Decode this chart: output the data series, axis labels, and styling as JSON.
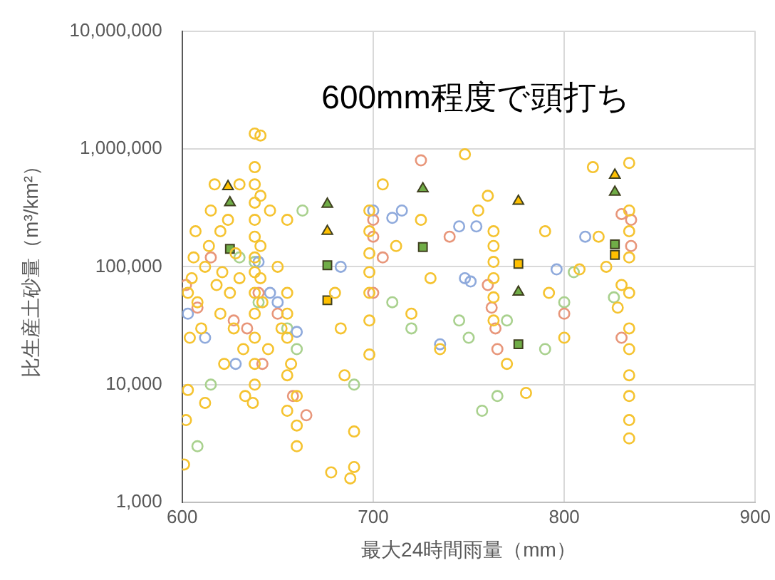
{
  "chart_data": {
    "type": "scatter",
    "xlabel": "最大24時間雨量（mm）",
    "ylabel": "比生産土砂量（m³/km²）",
    "annotations": [
      "600mm程度で頭打ち"
    ],
    "xlim": [
      600,
      900
    ],
    "xticks": [
      600,
      700,
      800,
      900
    ],
    "ylim": [
      1000,
      10000000
    ],
    "yticks": [
      {
        "value": 1000,
        "label": "1,000"
      },
      {
        "value": 10000,
        "label": "10,000"
      },
      {
        "value": 100000,
        "label": "100,000"
      },
      {
        "value": 1000000,
        "label": "1,000,000"
      },
      {
        "value": 10000000,
        "label": "10,000,000"
      }
    ],
    "log": "y",
    "grid": true,
    "legend": false,
    "series": [
      {
        "color": "#f5c330",
        "marker": "circle",
        "x": [
          601,
          602,
          603,
          604,
          603,
          605,
          606,
          607,
          608,
          610,
          612,
          612,
          614,
          615,
          617,
          618,
          620,
          620,
          622,
          621,
          624,
          625,
          627,
          628,
          630,
          630,
          632,
          633,
          638,
          641,
          638,
          638,
          638,
          638,
          638,
          638,
          638,
          638,
          638,
          638,
          638,
          638,
          637,
          641,
          641,
          641,
          642,
          645,
          646,
          650,
          652,
          655,
          655,
          657,
          660,
          660,
          660,
          655,
          655,
          655,
          655,
          680,
          683,
          685,
          690,
          690,
          678,
          688,
          698,
          698,
          698,
          698,
          698,
          698,
          698,
          705,
          712,
          720,
          725,
          730,
          735,
          748,
          755,
          763,
          763,
          763,
          763,
          763,
          763,
          760,
          770,
          780,
          790,
          792,
          800,
          808,
          815,
          818,
          822,
          834,
          834,
          834,
          834,
          834,
          834,
          834,
          834,
          834,
          834,
          834,
          830,
          828
        ],
        "values": [
          2100,
          5000,
          9000,
          25000,
          60000,
          80000,
          120000,
          200000,
          50000,
          30000,
          7000,
          100000,
          150000,
          300000,
          500000,
          70000,
          40000,
          200000,
          15000,
          90000,
          250000,
          60000,
          30000,
          130000,
          500000,
          80000,
          20000,
          8000,
          1350000,
          1300000,
          700000,
          500000,
          350000,
          250000,
          180000,
          120000,
          90000,
          60000,
          40000,
          25000,
          15000,
          10000,
          7000,
          400000,
          150000,
          80000,
          50000,
          20000,
          300000,
          100000,
          30000,
          250000,
          60000,
          15000,
          8000,
          4500,
          3000,
          40000,
          25000,
          12000,
          6000,
          60000,
          30000,
          12000,
          4000,
          2000,
          1800,
          1600,
          300000,
          200000,
          130000,
          90000,
          60000,
          35000,
          18000,
          500000,
          150000,
          40000,
          250000,
          80000,
          20000,
          900000,
          300000,
          200000,
          150000,
          110000,
          80000,
          55000,
          35000,
          400000,
          15000,
          8500,
          200000,
          60000,
          25000,
          95000,
          700000,
          180000,
          100000,
          760000,
          300000,
          200000,
          120000,
          60000,
          30000,
          20000,
          12000,
          8000,
          5000,
          3500,
          70000,
          45000
        ]
      },
      {
        "color": "#e8967a",
        "marker": "circle",
        "x": [
          602,
          608,
          615,
          627,
          634,
          640,
          642,
          650,
          658,
          665,
          700,
          700,
          700,
          705,
          725,
          740,
          760,
          762,
          764,
          765,
          800,
          830,
          835,
          835,
          830
        ],
        "values": [
          70000,
          45000,
          120000,
          35000,
          30000,
          60000,
          15000,
          40000,
          8000,
          5500,
          250000,
          180000,
          60000,
          120000,
          800000,
          180000,
          70000,
          45000,
          30000,
          20000,
          40000,
          280000,
          250000,
          150000,
          25000
        ]
      },
      {
        "color": "#8faadc",
        "marker": "circle",
        "x": [
          603,
          612,
          628,
          640,
          646,
          650,
          660,
          683,
          700,
          710,
          715,
          735,
          745,
          748,
          751,
          754,
          796,
          811
        ],
        "values": [
          40000,
          25000,
          15000,
          110000,
          60000,
          50000,
          28000,
          100000,
          300000,
          260000,
          300000,
          22000,
          220000,
          80000,
          75000,
          220000,
          95000,
          180000
        ]
      },
      {
        "color": "#a9d18e",
        "marker": "circle",
        "x": [
          608,
          615,
          630,
          638,
          640,
          655,
          660,
          663,
          690,
          710,
          720,
          745,
          750,
          757,
          765,
          770,
          790,
          800,
          805,
          826
        ],
        "values": [
          3000,
          10000,
          120000,
          110000,
          50000,
          30000,
          20000,
          300000,
          10000,
          50000,
          30000,
          35000,
          25000,
          6000,
          8000,
          35000,
          20000,
          50000,
          90000,
          55000
        ]
      },
      {
        "color": "#ffc000",
        "marker": "triangle",
        "x": [
          624,
          676,
          776,
          826.5
        ],
        "values": [
          480000,
          200000,
          360000,
          600000
        ]
      },
      {
        "color": "#70ad47",
        "marker": "triangle",
        "x": [
          625,
          676,
          726,
          776,
          826.5
        ],
        "values": [
          350000,
          340000,
          460000,
          61000,
          430000
        ]
      },
      {
        "color": "#70ad47",
        "marker": "square",
        "x": [
          625,
          676,
          726,
          776,
          826.5
        ],
        "values": [
          142000,
          103000,
          147000,
          22000,
          155000
        ]
      },
      {
        "color": "#ffc000",
        "marker": "square",
        "x": [
          676,
          776,
          826.5
        ],
        "values": [
          52000,
          106000,
          126000
        ]
      }
    ]
  }
}
